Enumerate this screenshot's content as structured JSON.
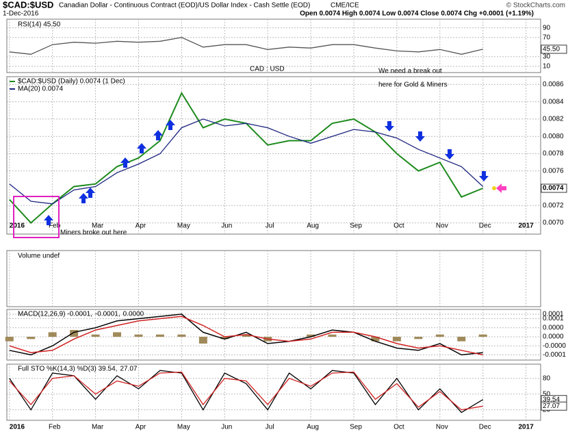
{
  "header": {
    "symbol": "$CAD:$USD",
    "description": "Canadian Dollar - Continuous Contract (EOD)/US Dollar Index - Cash Settle (EOD)",
    "exchange": "CME/ICE",
    "date": "1-Dec-2016",
    "ohlc": "Open 0.0074 High 0.0074 Low 0.0074 Close 0.0074 Chg +0.0001 (+1.19%)",
    "credit": "© StockCharts.com"
  },
  "chart_data": [
    {
      "type": "line",
      "title": "RSI(14) 45.50",
      "ylim": [
        -3,
        108
      ],
      "yticks": [
        10,
        30,
        70,
        90
      ],
      "current_label": "45.50",
      "series": [
        {
          "name": "RSI(14)",
          "color": "#555555",
          "values": [
            40,
            35,
            55,
            60,
            58,
            62,
            60,
            62,
            70,
            50,
            55,
            55,
            45,
            50,
            48,
            55,
            55,
            48,
            42,
            40,
            45,
            35,
            45.5
          ]
        }
      ]
    },
    {
      "type": "line",
      "title": "CAD : USD",
      "x": [
        0,
        0.5,
        1,
        1.5,
        2,
        2.5,
        3,
        3.5,
        4,
        4.5,
        5,
        5.5,
        6,
        6.5,
        7,
        7.5,
        8,
        8.5,
        9,
        9.5,
        10,
        10.5,
        11
      ],
      "xlim": [
        -0.06,
        12.34
      ],
      "xticks": [
        {
          "value": 0,
          "label": "2016"
        },
        {
          "value": 1,
          "label": "Feb"
        },
        {
          "value": 2,
          "label": "Mar"
        },
        {
          "value": 3,
          "label": "Apr"
        },
        {
          "value": 4,
          "label": "May"
        },
        {
          "value": 5,
          "label": "Jun"
        },
        {
          "value": 6,
          "label": "Jul"
        },
        {
          "value": 7,
          "label": "Aug"
        },
        {
          "value": 8,
          "label": "Sep"
        },
        {
          "value": 9,
          "label": "Oct"
        },
        {
          "value": 10,
          "label": "Nov"
        },
        {
          "value": 11,
          "label": "Dec"
        },
        {
          "value": 12,
          "label": "2017"
        }
      ],
      "ylim": [
        0.00687,
        0.00869
      ],
      "yticks": [
        {
          "value": 0.007,
          "label": "0.0070"
        },
        {
          "value": 0.0072,
          "label": "0.0072"
        },
        {
          "value": 0.0076,
          "label": "0.0076"
        },
        {
          "value": 0.0078,
          "label": "0.0078"
        },
        {
          "value": 0.008,
          "label": "0.0080"
        },
        {
          "value": 0.0082,
          "label": "0.0082"
        },
        {
          "value": 0.0084,
          "label": "0.0084"
        },
        {
          "value": 0.0086,
          "label": "0.0086"
        }
      ],
      "current_label": "0.0074",
      "annotations": [
        "We need a break out",
        "here for Gold & Miners",
        "Miners broke out here"
      ],
      "series": [
        {
          "name": "$CAD:$USD (Daily) 0.0074 (1 Dec)",
          "color": "#1d8a1d",
          "values": [
            0.00727,
            0.007,
            0.00722,
            0.00742,
            0.00745,
            0.00765,
            0.00775,
            0.00795,
            0.0085,
            0.0081,
            0.0082,
            0.00815,
            0.0079,
            0.00795,
            0.00795,
            0.00815,
            0.0082,
            0.00805,
            0.0078,
            0.0076,
            0.0077,
            0.0073,
            0.0074
          ]
        },
        {
          "name": "MA(20) 0.0074",
          "color": "#1a237e",
          "values": [
            0.00745,
            0.00725,
            0.00722,
            0.00738,
            0.00742,
            0.00758,
            0.00768,
            0.0078,
            0.0081,
            0.0082,
            0.00812,
            0.00815,
            0.0081,
            0.008,
            0.00792,
            0.008,
            0.00808,
            0.00805,
            0.00798,
            0.00785,
            0.00775,
            0.00765,
            0.00742
          ]
        }
      ]
    },
    {
      "type": "volume",
      "title": "Volume undef"
    },
    {
      "type": "macd",
      "legend": [
        "MACD(12,26,9) -0.0001,",
        "-0.0001,",
        "0.0000"
      ],
      "ylim": [
        -0.000103,
        0.000121
      ],
      "yticks": [
        0.0001,
        {
          "value": 8e-05,
          "label": "0.0001"
        },
        {
          "value": 4e-05,
          "label": "0.0000"
        },
        {
          "value": 0,
          "label": "0.0000"
        },
        {
          "value": -4e-05,
          "label": "-0.0000"
        },
        {
          "value": -8e-05,
          "label": "-0.0001"
        }
      ],
      "series": [
        {
          "name": "MACD",
          "color": "#000000",
          "values": [
            -6e-05,
            -8e-05,
            -4e-05,
            2e-05,
            4e-05,
            7e-05,
            8e-05,
            9e-05,
            0.0001,
            2e-05,
            -1e-05,
            2e-05,
            -3e-05,
            -2e-05,
            0,
            3e-05,
            2e-05,
            -2e-05,
            -5e-05,
            -6e-05,
            -3e-05,
            -8e-05,
            -7e-05
          ]
        },
        {
          "name": "Signal",
          "color": "#d02020",
          "values": [
            -4e-05,
            -7e-05,
            -6e-05,
            -1e-05,
            3e-05,
            5e-05,
            7e-05,
            8e-05,
            9e-05,
            5e-05,
            0,
            1e-05,
            -1e-05,
            -2e-05,
            -1e-05,
            2e-05,
            2e-05,
            0,
            -3e-05,
            -5e-05,
            -4e-05,
            -6e-05,
            -8e-05
          ]
        },
        {
          "name": "Histogram",
          "color": "#a08a5a",
          "values": [
            -2e-05,
            -1e-05,
            2e-05,
            3e-05,
            1e-05,
            2e-05,
            1e-05,
            1e-05,
            1e-05,
            -3e-05,
            -1e-05,
            1e-05,
            -2e-05,
            0,
            1e-05,
            1e-05,
            0,
            -2e-05,
            -2e-05,
            -1e-05,
            1e-05,
            -2e-05,
            1e-05
          ]
        }
      ]
    },
    {
      "type": "line",
      "legend": [
        "Full STO %K(14,3) %D(3) 39.54,",
        "27.07"
      ],
      "ylim": [
        0,
        107
      ],
      "yticks": [
        20,
        50,
        80
      ],
      "series": [
        {
          "name": "%K",
          "color": "#000000",
          "current_label": "39.54",
          "values": [
            80,
            20,
            90,
            85,
            40,
            85,
            60,
            95,
            90,
            20,
            90,
            70,
            20,
            90,
            60,
            95,
            90,
            30,
            80,
            20,
            60,
            15,
            39.54
          ]
        },
        {
          "name": "%D",
          "color": "#d02020",
          "current_label": "27.07",
          "values": [
            75,
            30,
            80,
            85,
            50,
            75,
            65,
            90,
            92,
            30,
            80,
            75,
            30,
            80,
            65,
            90,
            92,
            40,
            70,
            25,
            55,
            20,
            27.07
          ]
        }
      ]
    }
  ]
}
